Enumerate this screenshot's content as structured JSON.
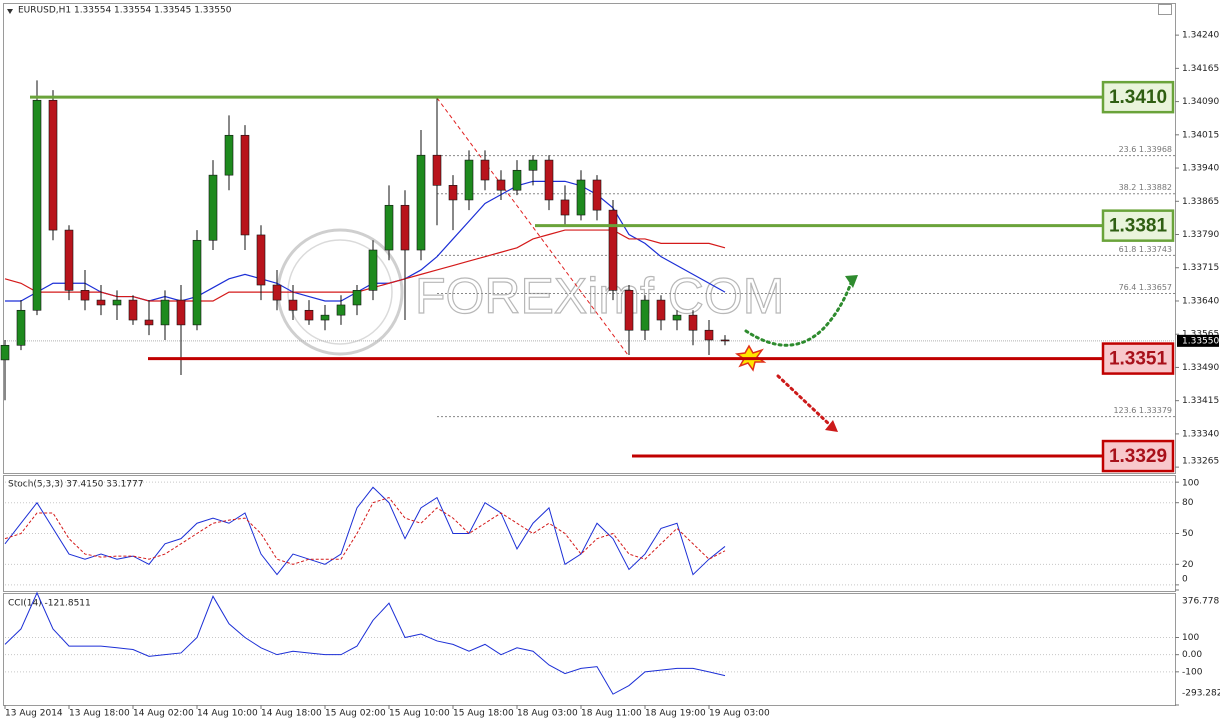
{
  "chart_data": [
    {
      "type": "candlestick",
      "title": "EURUSD,H1  1.33554 1.33554 1.33545 1.33550",
      "watermark": "FOREXimf.COM",
      "xlim": [
        0,
        146.25
      ],
      "x": [
        0,
        2,
        4,
        6,
        8,
        10,
        12,
        14,
        16,
        18,
        20,
        22,
        24,
        26,
        28,
        30,
        32,
        34,
        36,
        38,
        40,
        42,
        44,
        46,
        48,
        50,
        52,
        54,
        56,
        58,
        60,
        62,
        64,
        66,
        68,
        70,
        72,
        74,
        76,
        78,
        80,
        82,
        84,
        86,
        88,
        90
      ],
      "up_color": "#1e8a1e",
      "down_color": "#b8141c",
      "ohlc": [
        [
          1.33507,
          1.33552,
          1.33416,
          1.3354
        ],
        [
          1.3354,
          1.33642,
          1.33529,
          1.33619
        ],
        [
          1.33619,
          1.34138,
          1.33608,
          1.34093
        ],
        [
          1.34093,
          1.34116,
          1.33777,
          1.338
        ],
        [
          1.338,
          1.33811,
          1.33642,
          1.33664
        ],
        [
          1.33664,
          1.3371,
          1.33619,
          1.33642
        ],
        [
          1.33642,
          1.33676,
          1.33608,
          1.33631
        ],
        [
          1.33631,
          1.33664,
          1.33597,
          1.33642
        ],
        [
          1.33642,
          1.33653,
          1.33586,
          1.33597
        ],
        [
          1.33597,
          1.33642,
          1.33563,
          1.33586
        ],
        [
          1.33586,
          1.33664,
          1.33552,
          1.33642
        ],
        [
          1.33642,
          1.33676,
          1.33473,
          1.33586
        ],
        [
          1.33586,
          1.338,
          1.33574,
          1.33777
        ],
        [
          1.33777,
          1.33958,
          1.33755,
          1.33924
        ],
        [
          1.33924,
          1.34059,
          1.3389,
          1.34014
        ],
        [
          1.34014,
          1.34037,
          1.33755,
          1.33789
        ],
        [
          1.33789,
          1.33811,
          1.33642,
          1.33676
        ],
        [
          1.33676,
          1.3371,
          1.33619,
          1.33642
        ],
        [
          1.33642,
          1.33676,
          1.33597,
          1.33619
        ],
        [
          1.33619,
          1.33642,
          1.33586,
          1.33597
        ],
        [
          1.33597,
          1.33631,
          1.33574,
          1.33608
        ],
        [
          1.33608,
          1.33653,
          1.33586,
          1.33631
        ],
        [
          1.33631,
          1.33676,
          1.33608,
          1.33664
        ],
        [
          1.33664,
          1.33777,
          1.33642,
          1.33755
        ],
        [
          1.33755,
          1.33901,
          1.33732,
          1.33856
        ],
        [
          1.33856,
          1.3389,
          1.33597,
          1.33755
        ],
        [
          1.33755,
          1.34026,
          1.33732,
          1.33969
        ],
        [
          1.33969,
          1.34098,
          1.33811,
          1.33901
        ],
        [
          1.33901,
          1.33924,
          1.338,
          1.33868
        ],
        [
          1.33868,
          1.3398,
          1.33845,
          1.33958
        ],
        [
          1.33958,
          1.3398,
          1.3389,
          1.33913
        ],
        [
          1.33913,
          1.33935,
          1.33868,
          1.3389
        ],
        [
          1.3389,
          1.33958,
          1.33879,
          1.33935
        ],
        [
          1.33935,
          1.33969,
          1.33901,
          1.33958
        ],
        [
          1.33958,
          1.33969,
          1.33845,
          1.33868
        ],
        [
          1.33868,
          1.33901,
          1.33811,
          1.33834
        ],
        [
          1.33834,
          1.33935,
          1.33822,
          1.33913
        ],
        [
          1.33913,
          1.33924,
          1.33822,
          1.33845
        ],
        [
          1.33845,
          1.33868,
          1.33642,
          1.33664
        ],
        [
          1.33664,
          1.33676,
          1.33518,
          1.33574
        ],
        [
          1.33574,
          1.33653,
          1.33552,
          1.33642
        ],
        [
          1.33642,
          1.33653,
          1.33574,
          1.33597
        ],
        [
          1.33597,
          1.33619,
          1.33574,
          1.33608
        ],
        [
          1.33608,
          1.33619,
          1.3354,
          1.33574
        ],
        [
          1.33574,
          1.33597,
          1.33518,
          1.33552
        ],
        [
          1.33552,
          1.33563,
          1.3354,
          1.3355
        ]
      ],
      "series": [
        {
          "color": "#1c2fd6",
          "values": [
            1.3364,
            1.3364,
            1.3366,
            1.3368,
            1.3368,
            1.3368,
            1.3366,
            1.3365,
            1.3365,
            1.3364,
            1.3365,
            1.3364,
            1.3365,
            1.3367,
            1.3369,
            1.337,
            1.3369,
            1.3368,
            1.3366,
            1.3365,
            1.3364,
            1.3364,
            1.3366,
            1.3368,
            1.3368,
            1.3369,
            1.3371,
            1.3374,
            1.3378,
            1.3382,
            1.3386,
            1.3388,
            1.339,
            1.3391,
            1.3391,
            1.3391,
            1.339,
            1.3388,
            1.3385,
            1.3379,
            1.3377,
            1.3374,
            1.3372,
            1.337,
            1.3368,
            1.3366
          ]
        },
        {
          "color": "#d41a1a",
          "values": [
            1.3369,
            1.3368,
            1.3366,
            1.3366,
            1.3366,
            1.3366,
            1.3366,
            1.3365,
            1.3365,
            1.3364,
            1.3364,
            1.3364,
            1.3364,
            1.3364,
            1.3366,
            1.3366,
            1.3366,
            1.3366,
            1.3366,
            1.3366,
            1.3366,
            1.3366,
            1.3366,
            1.3367,
            1.3368,
            1.3369,
            1.337,
            1.3371,
            1.3372,
            1.3373,
            1.3374,
            1.3375,
            1.3376,
            1.3378,
            1.3379,
            1.338,
            1.338,
            1.338,
            1.338,
            1.3378,
            1.3378,
            1.3377,
            1.3377,
            1.3377,
            1.3377,
            1.3376
          ]
        }
      ],
      "ylim": [
        1.33254,
        1.34308
      ],
      "yticks": [
        {
          "value": 1.3424,
          "label": "1.34240"
        },
        1.34165,
        {
          "value": 1.3409,
          "label": "1.34090"
        },
        1.34015,
        {
          "value": 1.3394,
          "label": "1.33940"
        },
        1.33865,
        {
          "value": 1.3379,
          "label": "1.33790"
        },
        1.33715,
        {
          "value": 1.3364,
          "label": "1.33640"
        },
        1.33565,
        {
          "value": 1.3349,
          "label": "1.33490"
        },
        1.33415,
        {
          "value": 1.3334,
          "label": "1.33340"
        },
        1.33265
      ],
      "last_price": {
        "value": 1.3355,
        "label": "1.33550"
      },
      "fib_levels": [
        {
          "value": 1.33968,
          "label": "23.6 1.33968"
        },
        {
          "value": 1.33882,
          "label": "38.2 1.33882"
        },
        {
          "value": 1.33743,
          "label": "61.8 1.33743"
        },
        {
          "value": 1.33657,
          "label": "76.4 1.33657"
        },
        {
          "value": 1.33379,
          "label": "123.6 1.33379"
        }
      ],
      "levels": [
        {
          "value": 1.341,
          "label": "1.3410",
          "color": "#6aa33a",
          "fill": "#eaf4dc",
          "text_color": "#2f5e12"
        },
        {
          "value": 1.3381,
          "label": "1.3381",
          "color": "#6aa33a",
          "fill": "#eaf4dc",
          "text_color": "#2f5e12"
        },
        {
          "value": 1.3351,
          "label": "1.3351",
          "color": "#c00000",
          "fill": "#f8c8cc",
          "text_color": "#a8101a"
        },
        {
          "value": 1.3329,
          "label": "1.3329",
          "color": "#c00000",
          "fill": "#f8c8cc",
          "text_color": "#a8101a"
        }
      ]
    },
    {
      "type": "line",
      "title": "Stoch(5,3,3) 37.4150 33.1777",
      "series": [
        {
          "color": "#1c2fd6",
          "values": [
            40,
            60,
            80,
            55,
            30,
            25,
            30,
            25,
            28,
            20,
            40,
            45,
            60,
            65,
            60,
            70,
            30,
            10,
            30,
            25,
            20,
            30,
            75,
            95,
            80,
            45,
            75,
            85,
            50,
            50,
            80,
            70,
            35,
            60,
            75,
            20,
            30,
            60,
            45,
            15,
            30,
            55,
            60,
            10,
            25,
            37.415
          ]
        },
        {
          "color": "#d41a1a",
          "dashed": true,
          "values": [
            45,
            50,
            70,
            70,
            45,
            30,
            27,
            28,
            28,
            25,
            30,
            40,
            50,
            60,
            63,
            65,
            50,
            25,
            20,
            25,
            25,
            25,
            50,
            80,
            85,
            65,
            60,
            75,
            65,
            50,
            60,
            70,
            60,
            50,
            60,
            50,
            30,
            45,
            50,
            30,
            25,
            40,
            55,
            40,
            25,
            33.1777
          ]
        }
      ],
      "ylim": [
        -5,
        106
      ],
      "yticks": [
        100,
        80,
        50,
        20,
        0
      ]
    },
    {
      "type": "line",
      "title": "CCI(14) -121.8511",
      "series": [
        {
          "color": "#1c2fd6",
          "values": [
            60,
            150,
            360,
            150,
            50,
            50,
            50,
            40,
            30,
            -10,
            0,
            10,
            100,
            340,
            180,
            100,
            40,
            0,
            20,
            10,
            0,
            0,
            50,
            200,
            300,
            100,
            120,
            80,
            60,
            20,
            60,
            0,
            40,
            20,
            -60,
            -110,
            -80,
            -70,
            -230,
            -180,
            -100,
            -90,
            -80,
            -80,
            -100,
            -121.8511
          ]
        }
      ],
      "ylim": [
        -293.2824,
        376.778
      ],
      "yticks": [
        376.778,
        100,
        {
          "value": 0,
          "label": "0.00"
        },
        -100,
        -293.2824
      ],
      "xticks": [
        {
          "value": 0,
          "label": "13 Aug 2014"
        },
        {
          "value": 8,
          "label": "13 Aug 18:00"
        },
        {
          "value": 16,
          "label": "14 Aug 02:00"
        },
        {
          "value": 24,
          "label": "14 Aug 10:00"
        },
        {
          "value": 32,
          "label": "14 Aug 18:00"
        },
        {
          "value": 40,
          "label": "15 Aug 02:00"
        },
        {
          "value": 48,
          "label": "15 Aug 10:00"
        },
        {
          "value": 56,
          "label": "15 Aug 18:00"
        },
        {
          "value": 64,
          "label": "18 Aug 03:00"
        },
        {
          "value": 72,
          "label": "18 Aug 11:00"
        },
        {
          "value": 80,
          "label": "18 Aug 19:00"
        },
        {
          "value": 88,
          "label": "19 Aug 03:00"
        }
      ]
    }
  ]
}
